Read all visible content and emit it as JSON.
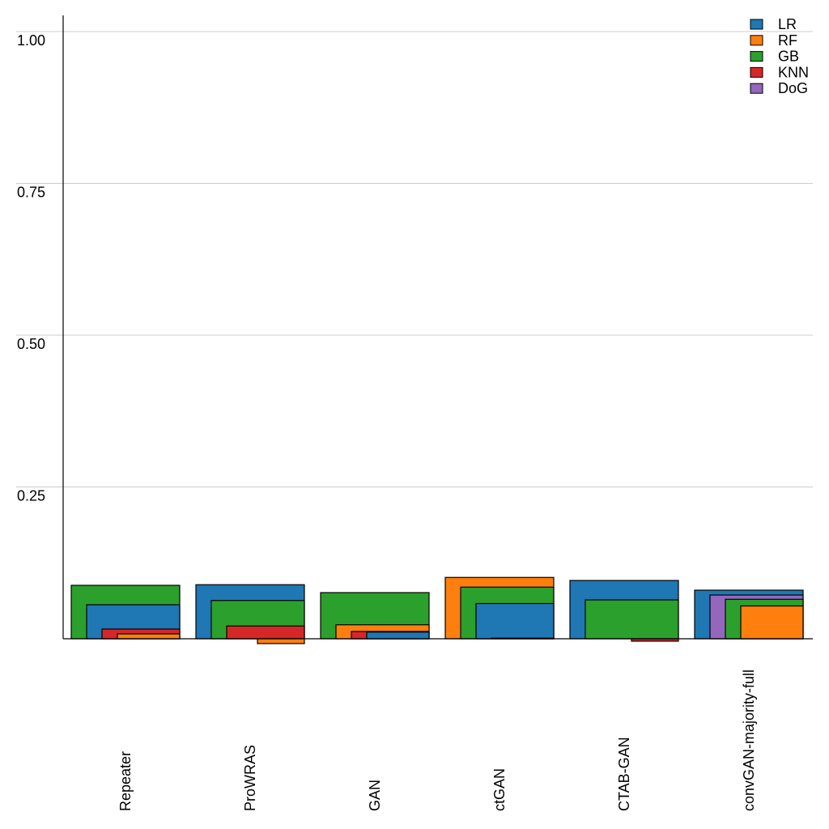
{
  "chart_data": {
    "type": "bar",
    "style": "overlapping-nested-bars",
    "title": "",
    "xlabel": "",
    "ylabel": "",
    "ylim": [
      0,
      1.0
    ],
    "yticks": [
      0.25,
      0.5,
      0.75,
      1.0
    ],
    "ytick_labels": [
      "0.25",
      "0.50",
      "0.75",
      "1.00"
    ],
    "grid": "y",
    "legend_position": "top-right",
    "categories": [
      "Repeater",
      "ProWRAS",
      "GAN",
      "ctGAN",
      "CTAB-GAN",
      "convGAN-majority-full"
    ],
    "series": [
      {
        "name": "LR",
        "color": "#1f77b4",
        "values": [
          0.056,
          0.089,
          0.011,
          0.058,
          0.096,
          0.08
        ]
      },
      {
        "name": "RF",
        "color": "#ff7f0e",
        "values": [
          0.008,
          -0.008,
          0.023,
          0.101,
          0.0,
          0.054
        ]
      },
      {
        "name": "GB",
        "color": "#2ca02c",
        "values": [
          0.088,
          0.063,
          0.076,
          0.085,
          0.064,
          0.065
        ]
      },
      {
        "name": "KNN",
        "color": "#d62728",
        "values": [
          0.016,
          0.021,
          0.012,
          0.001,
          -0.004,
          0.0
        ]
      },
      {
        "name": "DoG",
        "color": "#9467bd",
        "values": [
          0.0,
          0.0,
          0.0,
          0.0,
          0.0,
          0.072
        ]
      }
    ]
  }
}
